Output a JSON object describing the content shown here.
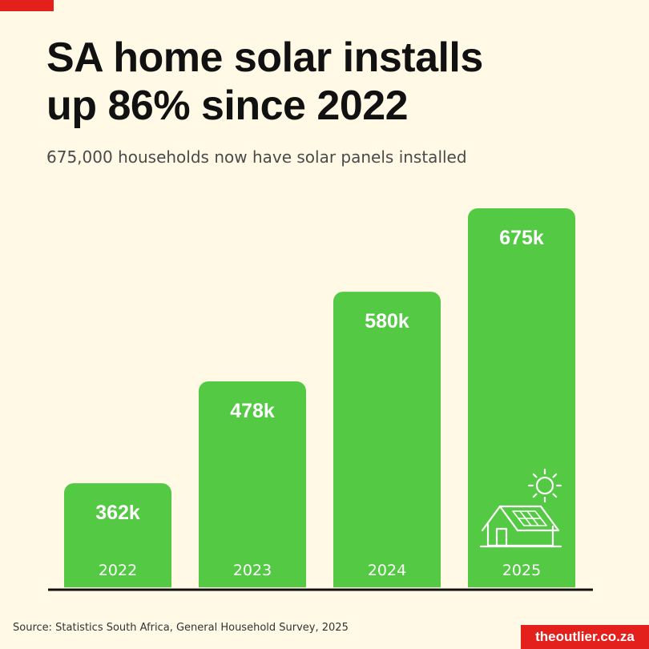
{
  "header": {
    "title_line1": "SA home solar installs",
    "title_line2": "up 86% since 2022",
    "subtitle": "675,000 households now have solar panels installed"
  },
  "colors": {
    "bar": "#54c944",
    "accent": "#e3201b",
    "background": "#fff9e6"
  },
  "chart_data": {
    "type": "bar",
    "categories": [
      "2022",
      "2023",
      "2024",
      "2025"
    ],
    "values": [
      362,
      478,
      580,
      675
    ],
    "data_labels": [
      "362k",
      "478k",
      "580k",
      "675k"
    ],
    "title": "SA home solar installs up 86% since 2022",
    "subtitle": "675,000 households now have solar panels installed",
    "unit": "thousand households",
    "ylim": [
      0,
      675
    ],
    "grid": false,
    "legend": "none",
    "annotation_icon": "house-with-solar-panels-and-sun-icon"
  },
  "footer": {
    "source": "Source: Statistics South Africa, General Household Survey, 2025",
    "brand": "theoutlier.co.za"
  }
}
